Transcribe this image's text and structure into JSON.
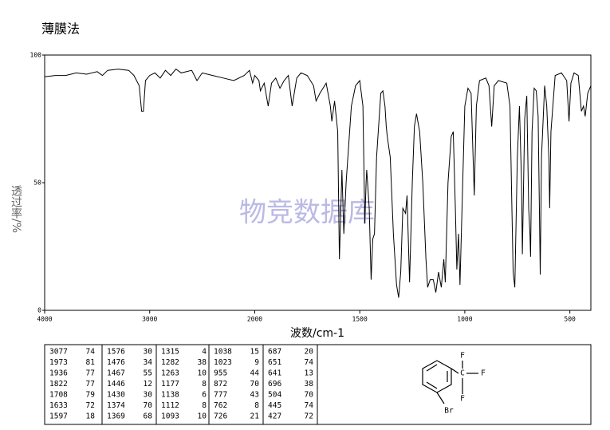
{
  "chart_data": {
    "type": "line",
    "title": "薄膜法",
    "x_label": "波数/cm-1",
    "y_label": "透过率/%",
    "watermark": "物竞数据库",
    "xlim": [
      4000,
      400
    ],
    "ylim": [
      0,
      100
    ],
    "xticks": [
      4000,
      3000,
      2000,
      1500,
      1000,
      500
    ],
    "yticks": [
      0,
      50,
      100
    ],
    "color": "#000000",
    "x": [
      4000,
      3900,
      3800,
      3700,
      3600,
      3500,
      3450,
      3400,
      3300,
      3200,
      3150,
      3100,
      3077,
      3060,
      3040,
      3000,
      2950,
      2900,
      2850,
      2800,
      2750,
      2700,
      2600,
      2550,
      2500,
      2400,
      2300,
      2200,
      2100,
      2050,
      2020,
      2000,
      1980,
      1973,
      1955,
      1936,
      1920,
      1900,
      1880,
      1860,
      1840,
      1822,
      1800,
      1780,
      1750,
      1720,
      1708,
      1690,
      1660,
      1640,
      1633,
      1620,
      1605,
      1597,
      1590,
      1585,
      1576,
      1565,
      1540,
      1520,
      1500,
      1485,
      1476,
      1470,
      1467,
      1455,
      1446,
      1438,
      1430,
      1420,
      1400,
      1390,
      1380,
      1374,
      1369,
      1355,
      1340,
      1325,
      1315,
      1305,
      1295,
      1282,
      1275,
      1263,
      1250,
      1240,
      1230,
      1215,
      1200,
      1185,
      1177,
      1165,
      1150,
      1138,
      1125,
      1112,
      1100,
      1093,
      1080,
      1065,
      1055,
      1045,
      1038,
      1030,
      1023,
      1010,
      1000,
      985,
      970,
      955,
      945,
      930,
      900,
      885,
      872,
      860,
      840,
      800,
      785,
      777,
      770,
      762,
      750,
      740,
      730,
      726,
      715,
      705,
      696,
      690,
      687,
      680,
      670,
      660,
      651,
      645,
      641,
      635,
      620,
      610,
      600,
      596,
      590,
      570,
      540,
      515,
      504,
      495,
      480,
      460,
      445,
      435,
      427,
      415,
      400
    ],
    "values": [
      91.5,
      92,
      92,
      93,
      92.5,
      93.5,
      92,
      94,
      94.5,
      94,
      92,
      88,
      78,
      78,
      90,
      92,
      93,
      91,
      94,
      92,
      94.5,
      93,
      94,
      90,
      93,
      92,
      91,
      90,
      92,
      94,
      89,
      92,
      90,
      86,
      89,
      80,
      89,
      91,
      87,
      90,
      92,
      80,
      91,
      93,
      92,
      88,
      82,
      85,
      89,
      80,
      74,
      82,
      70,
      20,
      40,
      55,
      30,
      50,
      80,
      88,
      90,
      80,
      34,
      50,
      55,
      40,
      12,
      28,
      30,
      60,
      85,
      86,
      80,
      72,
      68,
      60,
      30,
      10,
      5,
      15,
      40,
      38,
      45,
      11,
      50,
      72,
      77,
      70,
      50,
      20,
      9,
      12,
      12,
      7,
      15,
      9,
      20,
      11,
      50,
      68,
      70,
      40,
      16,
      30,
      10,
      50,
      80,
      87,
      85,
      45,
      80,
      90,
      91,
      88,
      72,
      88,
      90,
      89,
      80,
      45,
      15,
      9,
      60,
      80,
      50,
      22,
      75,
      84,
      40,
      30,
      21,
      70,
      87,
      86,
      76,
      40,
      14,
      60,
      88,
      80,
      60,
      40,
      70,
      92,
      93,
      90,
      74,
      89,
      93,
      92,
      78,
      80,
      76,
      85,
      88
    ]
  },
  "peak_table": [
    [
      [
        3077,
        74
      ],
      [
        1973,
        81
      ],
      [
        1936,
        77
      ],
      [
        1822,
        77
      ],
      [
        1708,
        79
      ],
      [
        1633,
        72
      ],
      [
        1597,
        18
      ]
    ],
    [
      [
        1576,
        30
      ],
      [
        1476,
        34
      ],
      [
        1467,
        55
      ],
      [
        1446,
        12
      ],
      [
        1430,
        30
      ],
      [
        1374,
        70
      ],
      [
        1369,
        68
      ]
    ],
    [
      [
        1315,
        4
      ],
      [
        1282,
        38
      ],
      [
        1263,
        10
      ],
      [
        1177,
        8
      ],
      [
        1138,
        6
      ],
      [
        1112,
        8
      ],
      [
        1093,
        10
      ]
    ],
    [
      [
        1038,
        15
      ],
      [
        1023,
        9
      ],
      [
        955,
        44
      ],
      [
        872,
        70
      ],
      [
        777,
        43
      ],
      [
        762,
        8
      ],
      [
        726,
        21
      ]
    ],
    [
      [
        687,
        20
      ],
      [
        651,
        74
      ],
      [
        641,
        13
      ],
      [
        696,
        38
      ],
      [
        504,
        70
      ],
      [
        445,
        74
      ],
      [
        427,
        72
      ]
    ]
  ],
  "structure": {
    "atoms": [
      "F",
      "F",
      "F",
      "C",
      "Br"
    ]
  }
}
